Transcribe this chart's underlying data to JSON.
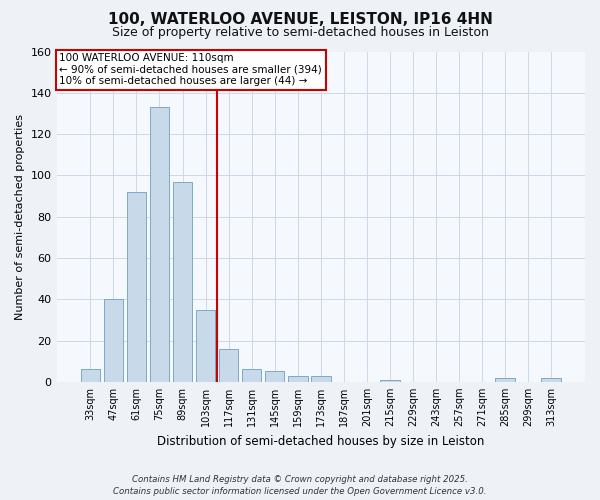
{
  "title": "100, WATERLOO AVENUE, LEISTON, IP16 4HN",
  "subtitle": "Size of property relative to semi-detached houses in Leiston",
  "xlabel": "Distribution of semi-detached houses by size in Leiston",
  "ylabel": "Number of semi-detached properties",
  "bar_labels": [
    "33sqm",
    "47sqm",
    "61sqm",
    "75sqm",
    "89sqm",
    "103sqm",
    "117sqm",
    "131sqm",
    "145sqm",
    "159sqm",
    "173sqm",
    "187sqm",
    "201sqm",
    "215sqm",
    "229sqm",
    "243sqm",
    "257sqm",
    "271sqm",
    "285sqm",
    "299sqm",
    "313sqm"
  ],
  "bar_values": [
    6,
    40,
    92,
    133,
    97,
    35,
    16,
    6,
    5,
    3,
    3,
    0,
    0,
    1,
    0,
    0,
    0,
    0,
    2,
    0,
    2
  ],
  "bar_color": "#c8daea",
  "bar_edge_color": "#7aaac8",
  "vline_x": 5.5,
  "vline_color": "#cc0000",
  "annotation_line1": "100 WATERLOO AVENUE: 110sqm",
  "annotation_line2": "← 90% of semi-detached houses are smaller (394)",
  "annotation_line3": "10% of semi-detached houses are larger (44) →",
  "annotation_box_color": "#cc0000",
  "ylim": [
    0,
    160
  ],
  "yticks": [
    0,
    20,
    40,
    60,
    80,
    100,
    120,
    140,
    160
  ],
  "footer1": "Contains HM Land Registry data © Crown copyright and database right 2025.",
  "footer2": "Contains public sector information licensed under the Open Government Licence v3.0.",
  "bg_color": "#eef2f7",
  "plot_bg_color": "#f5f8fc"
}
